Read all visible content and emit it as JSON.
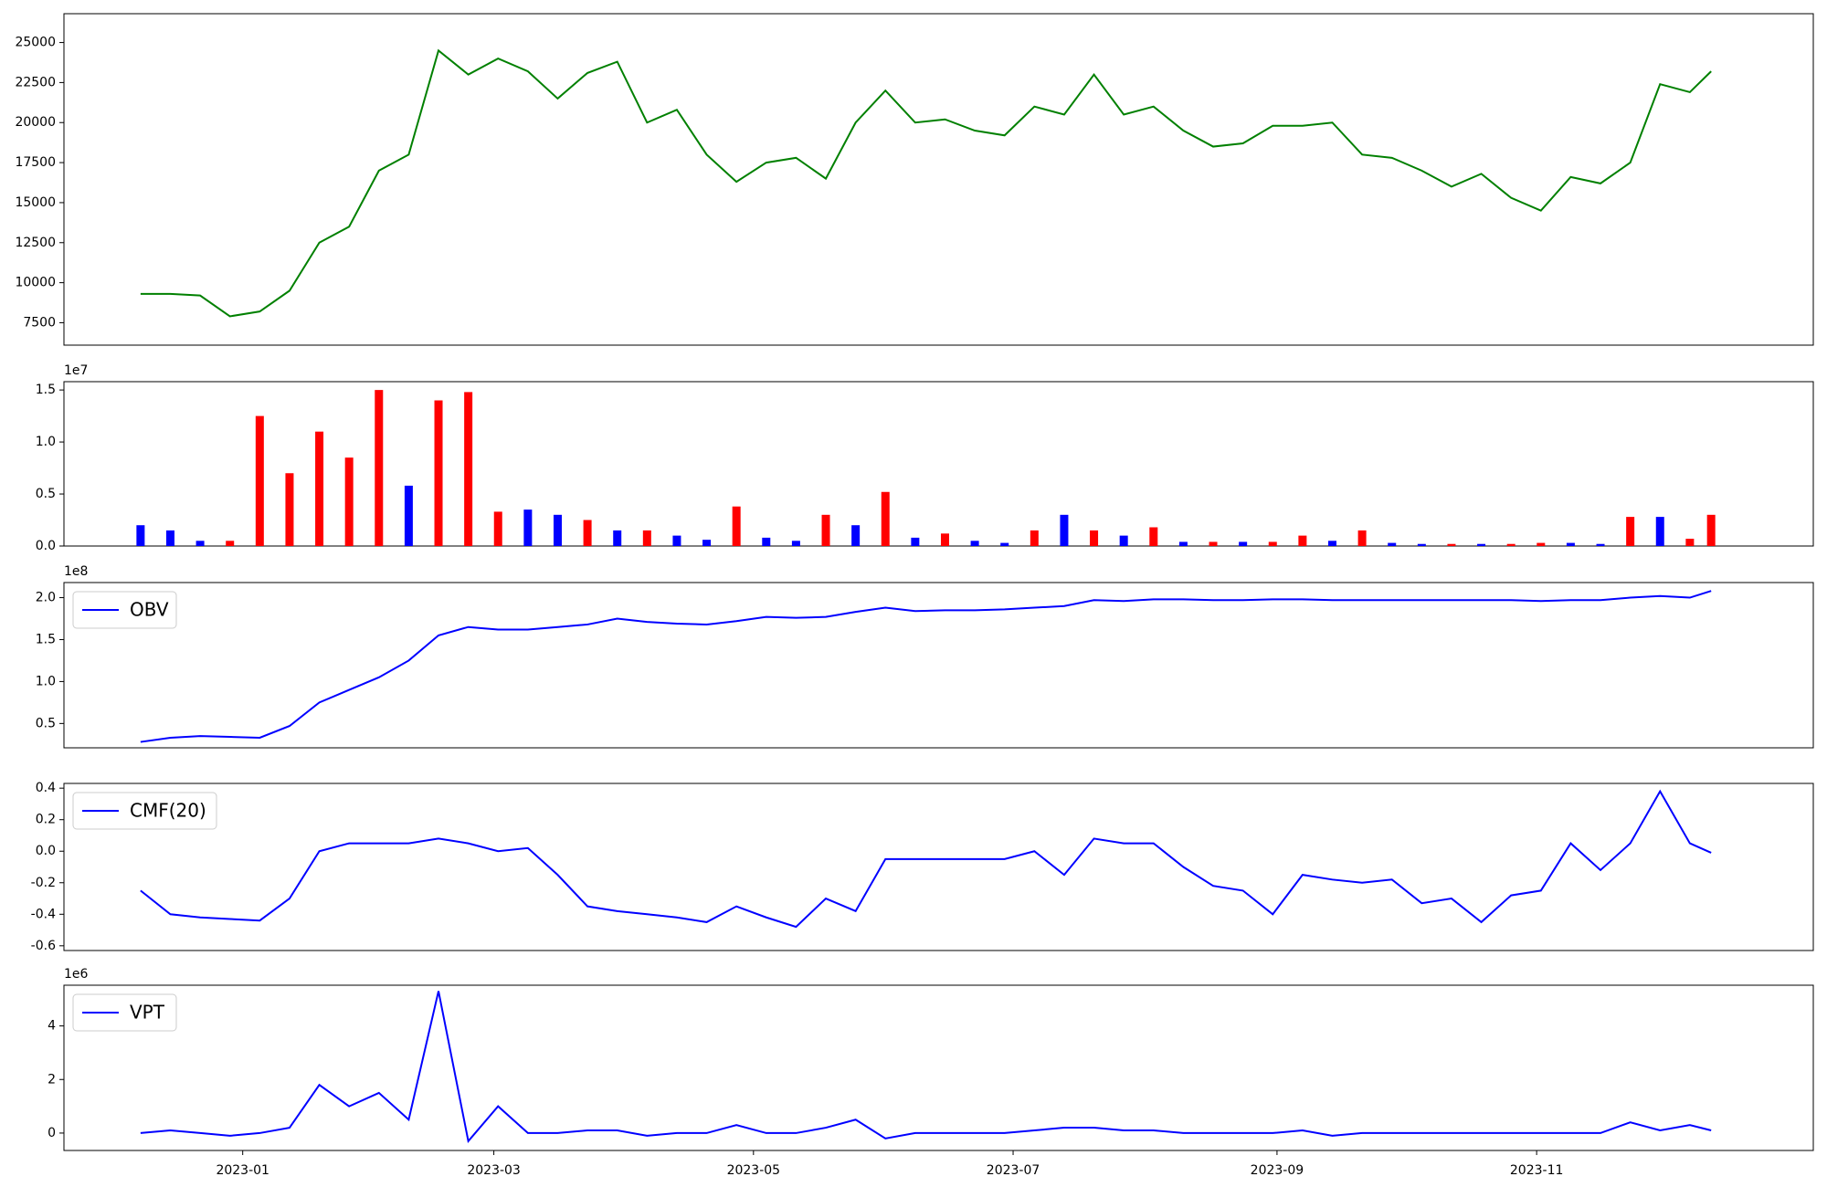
{
  "chart_data": [
    {
      "type": "line",
      "color": "green",
      "x": [
        "2022-12-08",
        "2022-12-15",
        "2022-12-22",
        "2022-12-29",
        "2023-01-05",
        "2023-01-12",
        "2023-01-19",
        "2023-01-26",
        "2023-02-02",
        "2023-02-09",
        "2023-02-16",
        "2023-02-23",
        "2023-03-02",
        "2023-03-09",
        "2023-03-16",
        "2023-03-23",
        "2023-03-30",
        "2023-04-06",
        "2023-04-13",
        "2023-04-20",
        "2023-04-27",
        "2023-05-04",
        "2023-05-11",
        "2023-05-18",
        "2023-05-25",
        "2023-06-01",
        "2023-06-08",
        "2023-06-15",
        "2023-06-22",
        "2023-06-29",
        "2023-07-06",
        "2023-07-13",
        "2023-07-20",
        "2023-07-27",
        "2023-08-03",
        "2023-08-10",
        "2023-08-17",
        "2023-08-24",
        "2023-08-31",
        "2023-09-07",
        "2023-09-14",
        "2023-09-21",
        "2023-09-28",
        "2023-10-05",
        "2023-10-12",
        "2023-10-19",
        "2023-10-26",
        "2023-11-02",
        "2023-11-09",
        "2023-11-16",
        "2023-11-23",
        "2023-11-30",
        "2023-12-07",
        "2023-12-12"
      ],
      "values": [
        9300,
        9300,
        9200,
        7900,
        8200,
        9500,
        12500,
        13500,
        17000,
        18000,
        24500,
        23000,
        24000,
        23200,
        21500,
        23100,
        23800,
        20000,
        20800,
        18000,
        16300,
        17500,
        17800,
        16500,
        20000,
        22000,
        20000,
        20200,
        19500,
        19200,
        21000,
        20500,
        23000,
        20500,
        21000,
        19500,
        18500,
        18700,
        19800,
        19800,
        20000,
        18000,
        17800,
        17000,
        16000,
        16800,
        15300,
        14500,
        16600,
        16200,
        17500,
        22400,
        21900,
        23200
      ],
      "xlim": [
        "2022-11-20",
        "2024-01-05"
      ],
      "ylim": [
        6100,
        26800
      ],
      "yticks": [
        7500,
        10000,
        12500,
        15000,
        17500,
        20000,
        22500,
        25000
      ]
    },
    {
      "type": "bar",
      "offset_label": "1e7",
      "x": [
        "2022-12-08",
        "2022-12-15",
        "2022-12-22",
        "2022-12-29",
        "2023-01-05",
        "2023-01-12",
        "2023-01-19",
        "2023-01-26",
        "2023-02-02",
        "2023-02-09",
        "2023-02-16",
        "2023-02-23",
        "2023-03-02",
        "2023-03-09",
        "2023-03-16",
        "2023-03-23",
        "2023-03-30",
        "2023-04-06",
        "2023-04-13",
        "2023-04-20",
        "2023-04-27",
        "2023-05-04",
        "2023-05-11",
        "2023-05-18",
        "2023-05-25",
        "2023-06-01",
        "2023-06-08",
        "2023-06-15",
        "2023-06-22",
        "2023-06-29",
        "2023-07-06",
        "2023-07-13",
        "2023-07-20",
        "2023-07-27",
        "2023-08-03",
        "2023-08-10",
        "2023-08-17",
        "2023-08-24",
        "2023-08-31",
        "2023-09-07",
        "2023-09-14",
        "2023-09-21",
        "2023-09-28",
        "2023-10-05",
        "2023-10-12",
        "2023-10-19",
        "2023-10-26",
        "2023-11-02",
        "2023-11-09",
        "2023-11-16",
        "2023-11-23",
        "2023-11-30",
        "2023-12-07",
        "2023-12-12"
      ],
      "values": [
        0.2,
        0.15,
        0.05,
        0.05,
        1.25,
        0.7,
        1.1,
        0.85,
        1.5,
        0.58,
        1.4,
        1.48,
        0.33,
        0.35,
        0.3,
        0.25,
        0.15,
        0.15,
        0.1,
        0.06,
        0.38,
        0.08,
        0.05,
        0.3,
        0.2,
        0.52,
        0.08,
        0.12,
        0.05,
        0.03,
        0.15,
        0.3,
        0.15,
        0.1,
        0.18,
        0.04,
        0.04,
        0.04,
        0.04,
        0.1,
        0.05,
        0.15,
        0.03,
        0.02,
        0.02,
        0.02,
        0.02,
        0.03,
        0.03,
        0.02,
        0.28,
        0.28,
        0.07,
        0.3
      ],
      "colors": [
        "blue",
        "blue",
        "blue",
        "red",
        "red",
        "red",
        "red",
        "red",
        "red",
        "blue",
        "red",
        "red",
        "red",
        "blue",
        "blue",
        "red",
        "blue",
        "red",
        "blue",
        "blue",
        "red",
        "blue",
        "blue",
        "red",
        "blue",
        "red",
        "blue",
        "red",
        "blue",
        "blue",
        "red",
        "blue",
        "red",
        "blue",
        "red",
        "blue",
        "red",
        "blue",
        "red",
        "red",
        "blue",
        "red",
        "blue",
        "blue",
        "red",
        "blue",
        "red",
        "red",
        "blue",
        "blue",
        "red",
        "blue",
        "red",
        "red"
      ],
      "xlim": [
        "2022-11-20",
        "2024-01-05"
      ],
      "ylim": [
        0,
        1.58
      ],
      "yticks": [
        {
          "value": 0,
          "label": "0.0"
        },
        0.5,
        {
          "value": 1,
          "label": "1.0"
        },
        1.5
      ]
    },
    {
      "type": "line",
      "offset_label": "1e8",
      "legend": "upper left",
      "x": [
        "2022-12-08",
        "2022-12-15",
        "2022-12-22",
        "2022-12-29",
        "2023-01-05",
        "2023-01-12",
        "2023-01-19",
        "2023-01-26",
        "2023-02-02",
        "2023-02-09",
        "2023-02-16",
        "2023-02-23",
        "2023-03-02",
        "2023-03-09",
        "2023-03-16",
        "2023-03-23",
        "2023-03-30",
        "2023-04-06",
        "2023-04-13",
        "2023-04-20",
        "2023-04-27",
        "2023-05-04",
        "2023-05-11",
        "2023-05-18",
        "2023-05-25",
        "2023-06-01",
        "2023-06-08",
        "2023-06-15",
        "2023-06-22",
        "2023-06-29",
        "2023-07-06",
        "2023-07-13",
        "2023-07-20",
        "2023-07-27",
        "2023-08-03",
        "2023-08-10",
        "2023-08-17",
        "2023-08-24",
        "2023-08-31",
        "2023-09-07",
        "2023-09-14",
        "2023-09-21",
        "2023-09-28",
        "2023-10-05",
        "2023-10-12",
        "2023-10-19",
        "2023-10-26",
        "2023-11-02",
        "2023-11-09",
        "2023-11-16",
        "2023-11-23",
        "2023-11-30",
        "2023-12-07",
        "2023-12-12"
      ],
      "series": [
        {
          "name": "OBV",
          "color": "blue",
          "values": [
            0.28,
            0.33,
            0.35,
            0.34,
            0.33,
            0.47,
            0.75,
            0.9,
            1.05,
            1.25,
            1.55,
            1.65,
            1.62,
            1.62,
            1.65,
            1.68,
            1.75,
            1.71,
            1.69,
            1.68,
            1.72,
            1.77,
            1.76,
            1.77,
            1.83,
            1.88,
            1.84,
            1.85,
            1.85,
            1.86,
            1.88,
            1.9,
            1.97,
            1.96,
            1.98,
            1.98,
            1.97,
            1.97,
            1.98,
            1.98,
            1.97,
            1.97,
            1.97,
            1.97,
            1.97,
            1.97,
            1.97,
            1.96,
            1.97,
            1.97,
            2.0,
            2.02,
            2.0,
            2.08
          ]
        }
      ],
      "xlim": [
        "2022-11-20",
        "2024-01-05"
      ],
      "ylim": [
        0.21,
        2.18
      ],
      "yticks": [
        0.5,
        {
          "value": 1,
          "label": "1.0"
        },
        1.5,
        {
          "value": 2,
          "label": "2.0"
        }
      ]
    },
    {
      "type": "line",
      "legend": "upper left",
      "x": [
        "2022-12-08",
        "2022-12-15",
        "2022-12-22",
        "2022-12-29",
        "2023-01-05",
        "2023-01-12",
        "2023-01-19",
        "2023-01-26",
        "2023-02-02",
        "2023-02-09",
        "2023-02-16",
        "2023-02-23",
        "2023-03-02",
        "2023-03-09",
        "2023-03-16",
        "2023-03-23",
        "2023-03-30",
        "2023-04-06",
        "2023-04-13",
        "2023-04-20",
        "2023-04-27",
        "2023-05-04",
        "2023-05-11",
        "2023-05-18",
        "2023-05-25",
        "2023-06-01",
        "2023-06-08",
        "2023-06-15",
        "2023-06-22",
        "2023-06-29",
        "2023-07-06",
        "2023-07-13",
        "2023-07-20",
        "2023-07-27",
        "2023-08-03",
        "2023-08-10",
        "2023-08-17",
        "2023-08-24",
        "2023-08-31",
        "2023-09-07",
        "2023-09-14",
        "2023-09-21",
        "2023-09-28",
        "2023-10-05",
        "2023-10-12",
        "2023-10-19",
        "2023-10-26",
        "2023-11-02",
        "2023-11-09",
        "2023-11-16",
        "2023-11-23",
        "2023-11-30",
        "2023-12-07",
        "2023-12-12"
      ],
      "series": [
        {
          "name": "CMF(20)",
          "color": "blue",
          "values": [
            -0.25,
            -0.4,
            -0.42,
            -0.43,
            -0.44,
            -0.3,
            0.0,
            0.05,
            0.05,
            0.05,
            0.08,
            0.05,
            0.0,
            0.02,
            -0.15,
            -0.35,
            -0.38,
            -0.4,
            -0.42,
            -0.45,
            -0.35,
            -0.42,
            -0.48,
            -0.3,
            -0.38,
            -0.05,
            -0.05,
            -0.05,
            -0.05,
            -0.05,
            0.0,
            -0.15,
            0.08,
            0.05,
            0.05,
            -0.1,
            -0.22,
            -0.25,
            -0.4,
            -0.15,
            -0.18,
            -0.2,
            -0.18,
            -0.33,
            -0.3,
            -0.45,
            -0.28,
            -0.25,
            0.05,
            -0.12,
            0.05,
            0.38,
            0.05,
            -0.01
          ]
        }
      ],
      "xlim": [
        "2022-11-20",
        "2024-01-05"
      ],
      "ylim": [
        -0.63,
        0.43
      ],
      "yticks": [
        -0.6,
        -0.4,
        -0.2,
        {
          "value": 0,
          "label": "0.0"
        },
        0.2,
        0.4
      ]
    },
    {
      "type": "line",
      "offset_label": "1e6",
      "legend": "upper left",
      "x": [
        "2022-12-08",
        "2022-12-15",
        "2022-12-22",
        "2022-12-29",
        "2023-01-05",
        "2023-01-12",
        "2023-01-19",
        "2023-01-26",
        "2023-02-02",
        "2023-02-09",
        "2023-02-16",
        "2023-02-23",
        "2023-03-02",
        "2023-03-09",
        "2023-03-16",
        "2023-03-23",
        "2023-03-30",
        "2023-04-06",
        "2023-04-13",
        "2023-04-20",
        "2023-04-27",
        "2023-05-04",
        "2023-05-11",
        "2023-05-18",
        "2023-05-25",
        "2023-06-01",
        "2023-06-08",
        "2023-06-15",
        "2023-06-22",
        "2023-06-29",
        "2023-07-06",
        "2023-07-13",
        "2023-07-20",
        "2023-07-27",
        "2023-08-03",
        "2023-08-10",
        "2023-08-17",
        "2023-08-24",
        "2023-08-31",
        "2023-09-07",
        "2023-09-14",
        "2023-09-21",
        "2023-09-28",
        "2023-10-05",
        "2023-10-12",
        "2023-10-19",
        "2023-10-26",
        "2023-11-02",
        "2023-11-09",
        "2023-11-16",
        "2023-11-23",
        "2023-11-30",
        "2023-12-07",
        "2023-12-12"
      ],
      "series": [
        {
          "name": "VPT",
          "color": "blue",
          "values": [
            0,
            0.1,
            0,
            -0.1,
            0,
            0.2,
            1.8,
            1.0,
            1.5,
            0.5,
            5.3,
            -0.3,
            1.0,
            0,
            0,
            0.1,
            0.1,
            -0.1,
            0,
            0,
            0.3,
            0,
            0,
            0.2,
            0.5,
            -0.2,
            0,
            0,
            0,
            0,
            0.1,
            0.2,
            0.2,
            0.1,
            0.1,
            0,
            0,
            0,
            0,
            0.1,
            -0.1,
            0,
            0,
            0,
            0,
            0,
            0,
            0,
            0,
            0,
            0.4,
            0.1,
            0.3,
            0.1
          ]
        }
      ],
      "xlim": [
        "2022-11-20",
        "2024-01-05"
      ],
      "ylim": [
        -0.65,
        5.52
      ],
      "yticks": [
        0,
        2,
        4
      ],
      "xticks": [
        {
          "value": "2023-01-01",
          "label": "2023-01"
        },
        {
          "value": "2023-03-01",
          "label": "2023-03"
        },
        {
          "value": "2023-05-01",
          "label": "2023-05"
        },
        {
          "value": "2023-07-01",
          "label": "2023-07"
        },
        {
          "value": "2023-09-01",
          "label": "2023-09"
        },
        {
          "value": "2023-11-01",
          "label": "2023-11"
        }
      ]
    }
  ]
}
